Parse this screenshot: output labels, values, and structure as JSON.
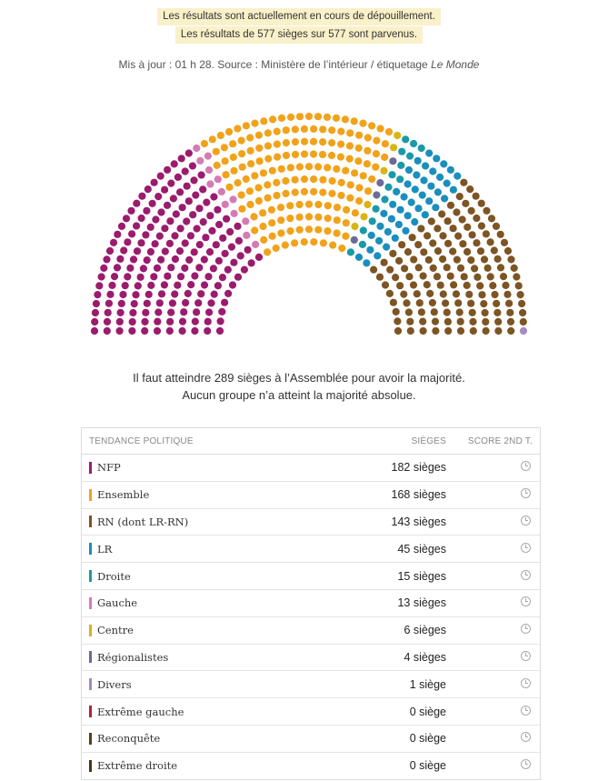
{
  "banner": {
    "line1": "Les résultats sont actuellement en cours de dépouillement.",
    "line2": "Les résultats de 577 sièges sur 577 sont parvenus."
  },
  "update": {
    "text": "Mis à jour : 01 h 28. Source : Ministère de l’intérieur / étiquetage ",
    "source_em": "Le Monde"
  },
  "majority": {
    "line1": "Il faut atteindre 289 sièges à l’Assemblée pour avoir la majorité.",
    "line2": "Aucun groupe n’a atteint la majorité absolue."
  },
  "table": {
    "headers": {
      "party": "TENDANCE POLITIQUE",
      "seats": "SIÈGES",
      "score": "SCORE 2ND T."
    }
  },
  "chart_data": {
    "type": "hemicycle",
    "total_seats": 577,
    "majority": 289,
    "series": [
      {
        "name": "NFP",
        "seats": 182,
        "label": "182 sièges",
        "color": "#9b1b6e"
      },
      {
        "name": "Ensemble",
        "seats": 168,
        "label": "168 sièges",
        "color": "#f2a21a"
      },
      {
        "name": "RN (dont LR-RN)",
        "seats": 143,
        "label": "143 sièges",
        "color": "#7d5523"
      },
      {
        "name": "LR",
        "seats": 45,
        "label": "45 sièges",
        "color": "#1a8fbd"
      },
      {
        "name": "Droite",
        "seats": 15,
        "label": "15 sièges",
        "color": "#1a9aa8"
      },
      {
        "name": "Gauche",
        "seats": 13,
        "label": "13 sièges",
        "color": "#d57bb4"
      },
      {
        "name": "Centre",
        "seats": 6,
        "label": "6 sièges",
        "color": "#d8b415"
      },
      {
        "name": "Régionalistes",
        "seats": 4,
        "label": "4 sièges",
        "color": "#6c6a99"
      },
      {
        "name": "Divers",
        "seats": 1,
        "label": "1 siège",
        "color": "#a58bc2"
      },
      {
        "name": "Extrême gauche",
        "seats": 0,
        "label": "0 siège",
        "color": "#b3243a"
      },
      {
        "name": "Reconquête",
        "seats": 0,
        "label": "0 siège",
        "color": "#5a3d1a"
      },
      {
        "name": "Extrême droite",
        "seats": 0,
        "label": "0 siège",
        "color": "#4a3515"
      }
    ],
    "seat_order": [
      "NFP",
      "Gauche",
      "Ensemble",
      "Centre",
      "Régionalistes",
      "Droite",
      "LR",
      "RN (dont LR-RN)",
      "Divers"
    ]
  }
}
